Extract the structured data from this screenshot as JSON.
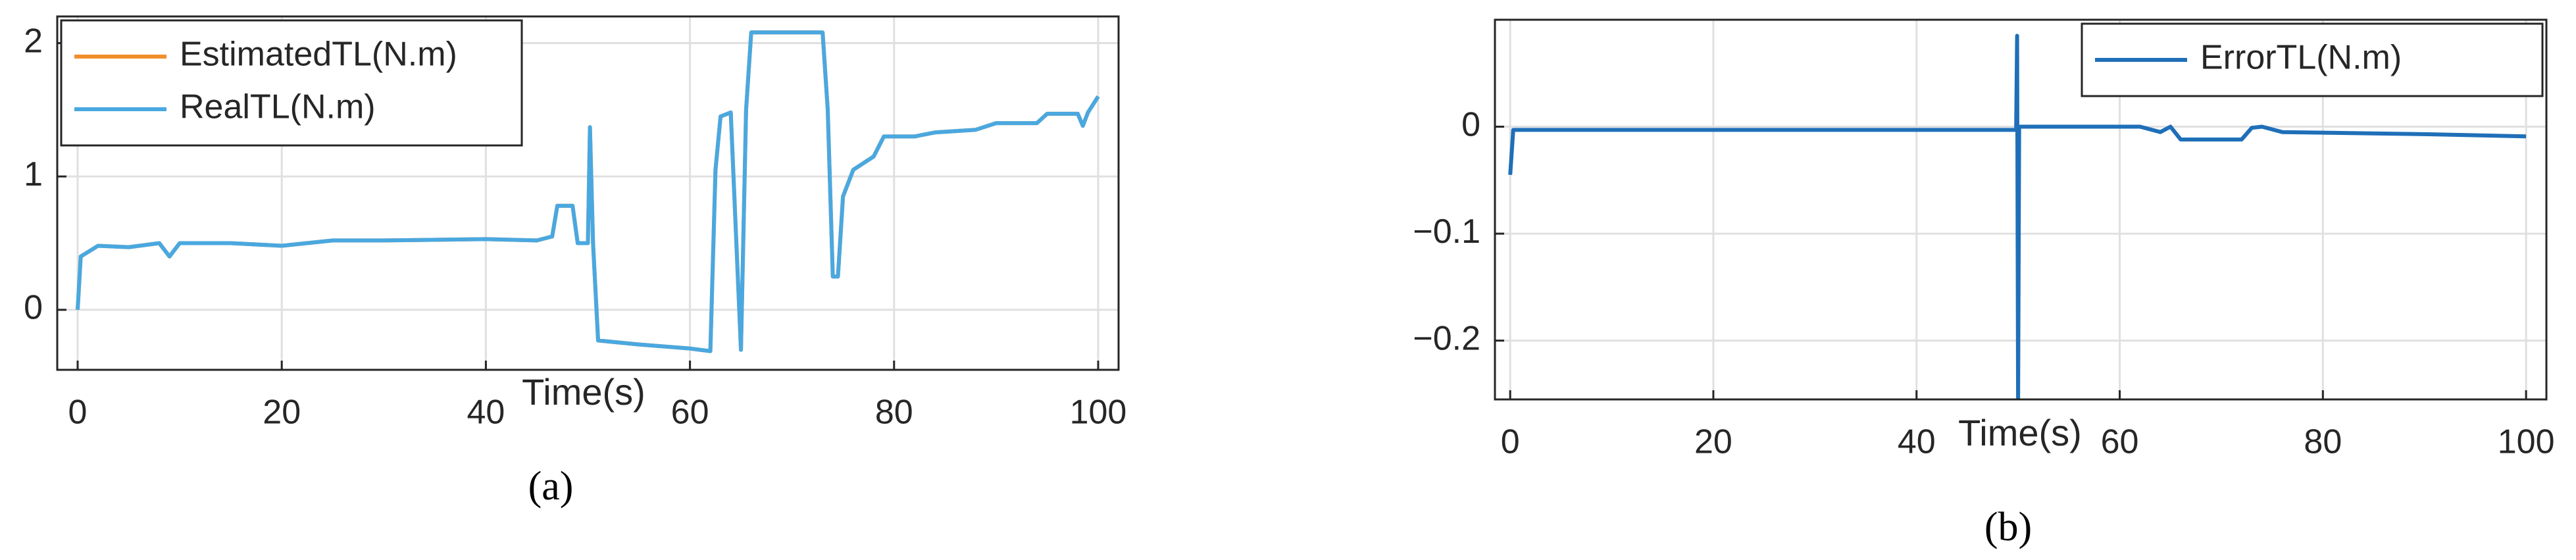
{
  "chart_data": [
    {
      "type": "line",
      "xlabel": "Time(s)",
      "caption": "(a)",
      "legend": "upper left",
      "grid": true,
      "xlim": [
        -2,
        102
      ],
      "ylim": [
        -0.45,
        2.2
      ],
      "xticks": [
        0,
        20,
        40,
        60,
        80,
        100
      ],
      "yticks": [
        0,
        1,
        2
      ],
      "x": [
        0,
        0.3,
        2,
        5,
        8,
        9,
        10,
        15,
        20,
        25,
        30,
        40,
        45,
        46.5,
        47,
        48.5,
        49,
        50,
        50.2,
        50.5,
        51,
        55,
        60,
        62,
        62.5,
        63,
        64,
        65,
        65.5,
        66,
        73,
        73.5,
        74,
        74.5,
        75,
        76,
        78,
        79,
        82,
        84,
        88,
        90,
        94,
        95,
        98,
        98.5,
        99,
        100
      ],
      "series": [
        {
          "name": "EstimatedTL(N.m)",
          "color": "#f28e2b",
          "values": [
            0,
            0.4,
            0.48,
            0.47,
            0.5,
            0.4,
            0.5,
            0.5,
            0.48,
            0.52,
            0.52,
            0.53,
            0.52,
            0.55,
            0.78,
            0.78,
            0.5,
            0.5,
            1.37,
            0.5,
            -0.23,
            -0.26,
            -0.29,
            -0.31,
            1.05,
            1.45,
            1.48,
            -0.3,
            1.5,
            2.08,
            2.08,
            1.5,
            0.25,
            0.25,
            0.85,
            1.05,
            1.15,
            1.3,
            1.3,
            1.33,
            1.35,
            1.4,
            1.4,
            1.47,
            1.47,
            1.38,
            1.48,
            1.6
          ]
        },
        {
          "name": "RealTL(N.m)",
          "color": "#4aa8e0",
          "values": [
            0,
            0.4,
            0.48,
            0.47,
            0.5,
            0.4,
            0.5,
            0.5,
            0.48,
            0.52,
            0.52,
            0.53,
            0.52,
            0.55,
            0.78,
            0.78,
            0.5,
            0.5,
            1.37,
            0.5,
            -0.23,
            -0.26,
            -0.29,
            -0.31,
            1.05,
            1.45,
            1.48,
            -0.3,
            1.5,
            2.08,
            2.08,
            1.5,
            0.25,
            0.25,
            0.85,
            1.05,
            1.15,
            1.3,
            1.3,
            1.33,
            1.35,
            1.4,
            1.4,
            1.47,
            1.47,
            1.38,
            1.48,
            1.6
          ]
        }
      ]
    },
    {
      "type": "line",
      "xlabel": "Time(s)",
      "caption": "(b)",
      "legend": "upper right",
      "grid": true,
      "xlim": [
        -1.5,
        102
      ],
      "ylim": [
        -0.255,
        0.1
      ],
      "xticks": [
        0,
        20,
        40,
        60,
        80,
        100
      ],
      "yticks": [
        {
          "value": -0.2,
          "label": "−0.2"
        },
        {
          "value": -0.1,
          "label": "−0.1"
        },
        0
      ],
      "x": [
        0,
        0.3,
        20,
        40,
        49.8,
        49.9,
        50,
        50.1,
        62,
        64,
        65,
        66,
        72,
        73,
        74,
        76,
        90,
        100
      ],
      "series": [
        {
          "name": "ErrorTL(N.m)",
          "color": "#1f6fb8",
          "values": [
            -0.045,
            -0.003,
            -0.003,
            -0.003,
            -0.003,
            0.085,
            -0.26,
            0,
            0,
            -0.005,
            0,
            -0.012,
            -0.012,
            -0.001,
            0,
            -0.005,
            -0.007,
            -0.009
          ]
        }
      ]
    }
  ]
}
